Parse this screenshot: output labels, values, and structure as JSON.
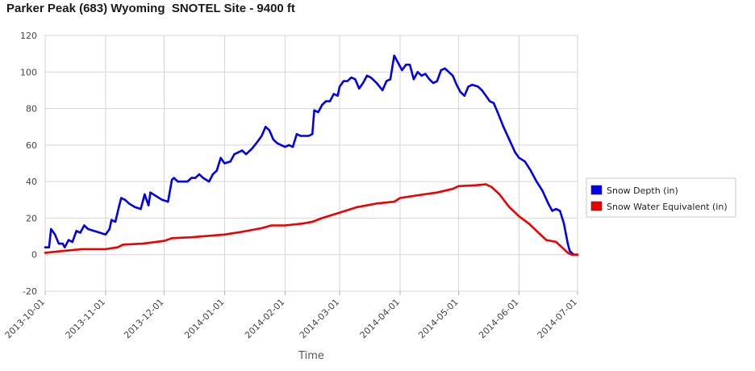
{
  "chart_data": {
    "type": "line",
    "title": "Parker Peak (683) Wyoming  SNOTEL Site - 9400 ft",
    "xlabel": "Time",
    "ylabel": "",
    "ylim": [
      -20,
      120
    ],
    "yticks": [
      -20,
      0,
      20,
      40,
      60,
      80,
      100,
      120
    ],
    "xlim": [
      "2013-10-01",
      "2014-07-01"
    ],
    "xticks": [
      "2013-10-01",
      "2013-11-01",
      "2013-12-01",
      "2014-01-01",
      "2014-02-01",
      "2014-03-01",
      "2014-04-01",
      "2014-05-01",
      "2014-06-01",
      "2014-07-01"
    ],
    "grid": true,
    "legend_position": "right",
    "series": [
      {
        "name": "Snow Depth (in)",
        "color": "#0000ee",
        "points": [
          [
            "2013-10-01",
            4
          ],
          [
            "2013-10-03",
            4
          ],
          [
            "2013-10-04",
            14
          ],
          [
            "2013-10-06",
            11
          ],
          [
            "2013-10-08",
            6
          ],
          [
            "2013-10-10",
            6
          ],
          [
            "2013-10-11",
            4
          ],
          [
            "2013-10-13",
            8
          ],
          [
            "2013-10-15",
            7
          ],
          [
            "2013-10-17",
            13
          ],
          [
            "2013-10-19",
            12
          ],
          [
            "2013-10-21",
            16
          ],
          [
            "2013-10-23",
            14
          ],
          [
            "2013-10-26",
            13
          ],
          [
            "2013-10-29",
            12
          ],
          [
            "2013-11-01",
            11
          ],
          [
            "2013-11-03",
            14
          ],
          [
            "2013-11-04",
            19
          ],
          [
            "2013-11-06",
            18
          ],
          [
            "2013-11-08",
            27
          ],
          [
            "2013-11-09",
            31
          ],
          [
            "2013-11-11",
            30
          ],
          [
            "2013-11-13",
            28
          ],
          [
            "2013-11-16",
            26
          ],
          [
            "2013-11-19",
            25
          ],
          [
            "2013-11-21",
            33
          ],
          [
            "2013-11-23",
            27
          ],
          [
            "2013-11-24",
            34
          ],
          [
            "2013-11-27",
            32
          ],
          [
            "2013-11-30",
            30
          ],
          [
            "2013-12-03",
            29
          ],
          [
            "2013-12-05",
            41
          ],
          [
            "2013-12-06",
            42
          ],
          [
            "2013-12-08",
            40
          ],
          [
            "2013-12-13",
            40
          ],
          [
            "2013-12-15",
            42
          ],
          [
            "2013-12-17",
            42
          ],
          [
            "2013-12-19",
            44
          ],
          [
            "2013-12-21",
            42
          ],
          [
            "2013-12-24",
            40
          ],
          [
            "2013-12-26",
            44
          ],
          [
            "2013-12-28",
            46
          ],
          [
            "2013-12-30",
            53
          ],
          [
            "2014-01-01",
            50
          ],
          [
            "2014-01-04",
            51
          ],
          [
            "2014-01-06",
            55
          ],
          [
            "2014-01-08",
            56
          ],
          [
            "2014-01-10",
            57
          ],
          [
            "2014-01-12",
            55
          ],
          [
            "2014-01-15",
            58
          ],
          [
            "2014-01-18",
            62
          ],
          [
            "2014-01-20",
            65
          ],
          [
            "2014-01-22",
            70
          ],
          [
            "2014-01-24",
            68
          ],
          [
            "2014-01-26",
            63
          ],
          [
            "2014-01-28",
            61
          ],
          [
            "2014-01-30",
            60
          ],
          [
            "2014-02-01",
            59
          ],
          [
            "2014-02-03",
            60
          ],
          [
            "2014-02-05",
            59
          ],
          [
            "2014-02-07",
            66
          ],
          [
            "2014-02-09",
            65
          ],
          [
            "2014-02-13",
            65
          ],
          [
            "2014-02-15",
            66
          ],
          [
            "2014-02-16",
            79
          ],
          [
            "2014-02-18",
            78
          ],
          [
            "2014-02-20",
            82
          ],
          [
            "2014-02-22",
            84
          ],
          [
            "2014-02-24",
            84
          ],
          [
            "2014-02-26",
            88
          ],
          [
            "2014-02-28",
            87
          ],
          [
            "2014-03-01",
            92
          ],
          [
            "2014-03-03",
            95
          ],
          [
            "2014-03-05",
            95
          ],
          [
            "2014-03-07",
            97
          ],
          [
            "2014-03-09",
            96
          ],
          [
            "2014-03-11",
            91
          ],
          [
            "2014-03-13",
            94
          ],
          [
            "2014-03-15",
            98
          ],
          [
            "2014-03-17",
            97
          ],
          [
            "2014-03-20",
            94
          ],
          [
            "2014-03-23",
            90
          ],
          [
            "2014-03-25",
            95
          ],
          [
            "2014-03-27",
            96
          ],
          [
            "2014-03-29",
            109
          ],
          [
            "2014-03-31",
            105
          ],
          [
            "2014-04-02",
            101
          ],
          [
            "2014-04-04",
            104
          ],
          [
            "2014-04-06",
            104
          ],
          [
            "2014-04-08",
            96
          ],
          [
            "2014-04-10",
            100
          ],
          [
            "2014-04-12",
            98
          ],
          [
            "2014-04-14",
            99
          ],
          [
            "2014-04-16",
            96
          ],
          [
            "2014-04-18",
            94
          ],
          [
            "2014-04-20",
            95
          ],
          [
            "2014-04-22",
            101
          ],
          [
            "2014-04-24",
            102
          ],
          [
            "2014-04-26",
            100
          ],
          [
            "2014-04-28",
            98
          ],
          [
            "2014-04-30",
            93
          ],
          [
            "2014-05-02",
            89
          ],
          [
            "2014-05-04",
            87
          ],
          [
            "2014-05-06",
            92
          ],
          [
            "2014-05-08",
            93
          ],
          [
            "2014-05-11",
            92
          ],
          [
            "2014-05-13",
            90
          ],
          [
            "2014-05-15",
            87
          ],
          [
            "2014-05-17",
            84
          ],
          [
            "2014-05-19",
            83
          ],
          [
            "2014-05-21",
            78
          ],
          [
            "2014-05-24",
            70
          ],
          [
            "2014-05-27",
            63
          ],
          [
            "2014-05-30",
            56
          ],
          [
            "2014-06-01",
            53
          ],
          [
            "2014-06-04",
            51
          ],
          [
            "2014-06-07",
            46
          ],
          [
            "2014-06-10",
            40
          ],
          [
            "2014-06-13",
            35
          ],
          [
            "2014-06-16",
            28
          ],
          [
            "2014-06-18",
            24
          ],
          [
            "2014-06-20",
            25
          ],
          [
            "2014-06-22",
            24
          ],
          [
            "2014-06-24",
            17
          ],
          [
            "2014-06-26",
            6
          ],
          [
            "2014-06-27",
            2
          ],
          [
            "2014-06-29",
            0
          ],
          [
            "2014-07-01",
            0
          ]
        ]
      },
      {
        "name": "Snow Water Equivalent (in)",
        "color": "#ee0000",
        "points": [
          [
            "2013-10-01",
            1
          ],
          [
            "2013-10-10",
            2
          ],
          [
            "2013-10-20",
            3
          ],
          [
            "2013-11-01",
            3
          ],
          [
            "2013-11-07",
            4
          ],
          [
            "2013-11-10",
            5.5
          ],
          [
            "2013-11-20",
            6
          ],
          [
            "2013-12-01",
            7.5
          ],
          [
            "2013-12-05",
            9
          ],
          [
            "2013-12-15",
            9.5
          ],
          [
            "2014-01-01",
            11
          ],
          [
            "2014-01-10",
            12.5
          ],
          [
            "2014-01-20",
            14.5
          ],
          [
            "2014-01-25",
            16
          ],
          [
            "2014-02-01",
            16
          ],
          [
            "2014-02-10",
            17
          ],
          [
            "2014-02-15",
            18
          ],
          [
            "2014-02-20",
            20
          ],
          [
            "2014-03-01",
            23
          ],
          [
            "2014-03-10",
            26
          ],
          [
            "2014-03-20",
            28
          ],
          [
            "2014-03-29",
            29
          ],
          [
            "2014-04-01",
            31
          ],
          [
            "2014-04-10",
            32.5
          ],
          [
            "2014-04-20",
            34
          ],
          [
            "2014-04-28",
            36
          ],
          [
            "2014-05-01",
            37.5
          ],
          [
            "2014-05-10",
            38
          ],
          [
            "2014-05-15",
            38.5
          ],
          [
            "2014-05-18",
            37
          ],
          [
            "2014-05-22",
            33
          ],
          [
            "2014-05-27",
            26
          ],
          [
            "2014-06-01",
            21
          ],
          [
            "2014-06-06",
            17
          ],
          [
            "2014-06-10",
            13
          ],
          [
            "2014-06-15",
            8
          ],
          [
            "2014-06-20",
            7
          ],
          [
            "2014-06-23",
            4
          ],
          [
            "2014-06-26",
            1
          ],
          [
            "2014-06-28",
            0
          ],
          [
            "2014-07-01",
            0
          ]
        ]
      }
    ]
  }
}
